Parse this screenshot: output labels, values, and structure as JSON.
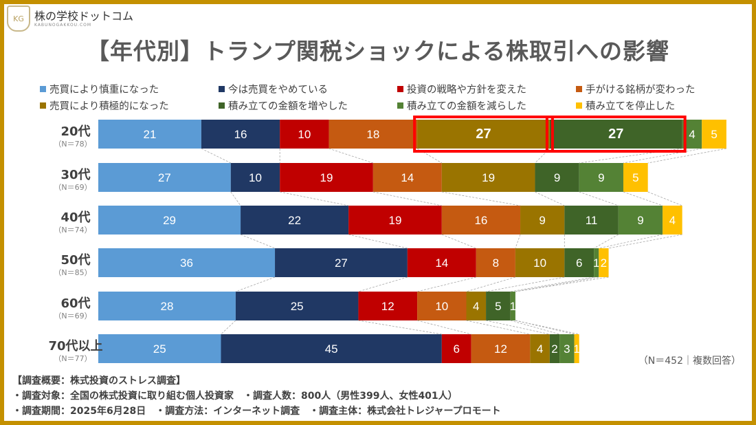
{
  "logo": {
    "text": "株の学校ドットコム",
    "subtext": "KABUNOGAKKOU.COM",
    "mark": "KG"
  },
  "chart_data": {
    "type": "bar",
    "stacked": true,
    "orientation": "horizontal",
    "title": "【年代別】トランプ関税ショックによる株取引への影響",
    "categories": [
      "20代",
      "30代",
      "40代",
      "50代",
      "60代",
      "70代以上"
    ],
    "category_n": [
      "（N＝78）",
      "（N＝69）",
      "（N＝74）",
      "（N＝85）",
      "（N＝69）",
      "（N＝77）"
    ],
    "series": [
      {
        "name": "売買により慎重になった",
        "color": "#5b9bd5",
        "values": [
          21,
          27,
          29,
          36,
          28,
          25
        ]
      },
      {
        "name": "今は売買をやめている",
        "color": "#203864",
        "values": [
          16,
          10,
          22,
          27,
          25,
          45
        ]
      },
      {
        "name": "投資の戦略や方針を変えた",
        "color": "#c00000",
        "values": [
          10,
          19,
          19,
          14,
          12,
          6
        ]
      },
      {
        "name": "手がける銘柄が変わった",
        "color": "#c55a11",
        "values": [
          18,
          14,
          16,
          8,
          10,
          12
        ]
      },
      {
        "name": "売買により積極的になった",
        "color": "#9a7400",
        "values": [
          27,
          19,
          9,
          10,
          4,
          4
        ]
      },
      {
        "name": "積み立ての金額を増やした",
        "color": "#3f6428",
        "values": [
          27,
          9,
          11,
          6,
          5,
          2
        ]
      },
      {
        "name": "積み立ての金額を減らした",
        "color": "#548235",
        "values": [
          4,
          9,
          9,
          1,
          1,
          3
        ]
      },
      {
        "name": "積み立てを停止した",
        "color": "#ffc000",
        "values": [
          5,
          5,
          4,
          2,
          0,
          1
        ]
      }
    ],
    "highlight": {
      "category": "20代",
      "series": [
        "売買により積極的になった",
        "積み立ての金額を増やした"
      ],
      "color": "#ff0000"
    },
    "legend": "top",
    "grid": false
  },
  "note": "（N＝452｜複数回答）",
  "footer": {
    "line1": "【調査概要：株式投資のストレス調査】",
    "line2": "・調査対象：全国の株式投資に取り組む個人投資家　・調査人数：800人（男性399人、女性401人）",
    "line3": "・調査期間：2025年6月28日　・調査方法：インターネット調査　・調査主体：株式会社トレジャープロモート"
  }
}
